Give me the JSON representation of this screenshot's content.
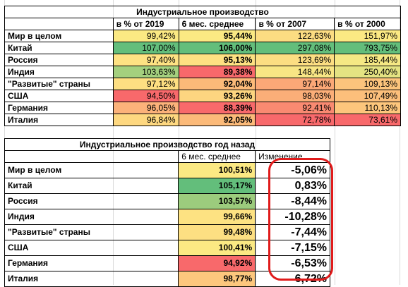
{
  "table1": {
    "title": "Индустриальное производство",
    "headers": [
      "в % от 2019",
      "6 мес. среднее",
      "в % от 2007",
      "в % от 2000"
    ],
    "rows": [
      {
        "name": "Мир в целом",
        "c1": "99,42%",
        "c2": "95,44%",
        "c3": "122,63%",
        "c4": "151,97%",
        "bg": [
          "#fbe983",
          "#fbe983",
          "#fcdc82",
          "#fbe983"
        ]
      },
      {
        "name": "Китай",
        "c1": "107,00%",
        "c2": "106,00%",
        "c3": "297,08%",
        "c4": "793,75%",
        "bg": [
          "#63be7b",
          "#63be7b",
          "#63be7b",
          "#63be7b"
        ]
      },
      {
        "name": "Россия",
        "c1": "97,40%",
        "c2": "95,13%",
        "c3": "123,69%",
        "c4": "185,44%",
        "bg": [
          "#fee283",
          "#fee182",
          "#fcde82",
          "#f5e884"
        ]
      },
      {
        "name": "Индия",
        "c1": "103,63%",
        "c2": "89,38%",
        "c3": "148,44%",
        "c4": "250,40%",
        "bg": [
          "#a4d07e",
          "#f8696b",
          "#f8e684",
          "#e4e382"
        ]
      },
      {
        "name": "\"Развитые\" страны",
        "c1": "97,12%",
        "c2": "92,04%",
        "c3": "97,14%",
        "c4": "109,13%",
        "bg": [
          "#fedf82",
          "#fcba79",
          "#fba877",
          "#fcc47c"
        ]
      },
      {
        "name": "США",
        "c1": "94,50%",
        "c2": "93,26%",
        "c3": "98,03%",
        "c4": "107,49%",
        "bg": [
          "#f8696b",
          "#fdd580",
          "#fbae78",
          "#fcbf7b"
        ]
      },
      {
        "name": "Германия",
        "c1": "96,05%",
        "c2": "88,39%",
        "c3": "92,41%",
        "c4": "110,13%",
        "bg": [
          "#fcb27a",
          "#f8696b",
          "#f98a71",
          "#fdc67c"
        ]
      },
      {
        "name": "Италия",
        "c1": "96,84%",
        "c2": "92,05%",
        "c3": "72,78%",
        "c4": "73,61%",
        "bg": [
          "#fed880",
          "#fcba79",
          "#f8696b",
          "#f8696b"
        ]
      }
    ]
  },
  "table2": {
    "title": "Индустриальное производство год назад",
    "headers": [
      "6 мес. среднее",
      "Изменение"
    ],
    "rows": [
      {
        "name": "Мир в целом",
        "avg": "100,51%",
        "chg": "-5,06%",
        "bg": "#fbe983"
      },
      {
        "name": "Китай",
        "avg": "105,17%",
        "chg": "0,83%",
        "bg": "#63be7b"
      },
      {
        "name": "Россия",
        "avg": "103,57%",
        "chg": "-8,44%",
        "bg": "#9ccc7d"
      },
      {
        "name": "Индия",
        "avg": "99,66%",
        "chg": "-10,28%",
        "bg": "#fde282"
      },
      {
        "name": "\"Развитые\" страны",
        "avg": "99,48%",
        "chg": "-7,44%",
        "bg": "#fddf82"
      },
      {
        "name": "США",
        "avg": "100,41%",
        "chg": "-7,15%",
        "bg": "#fbe983"
      },
      {
        "name": "Германия",
        "avg": "94,92%",
        "chg": "-6,53%",
        "bg": "#f8696b"
      },
      {
        "name": "Италия",
        "avg": "98,77%",
        "chg": "-6,72%",
        "bg": "#fdc77d"
      }
    ]
  },
  "annotation_color": "#e01b1b"
}
